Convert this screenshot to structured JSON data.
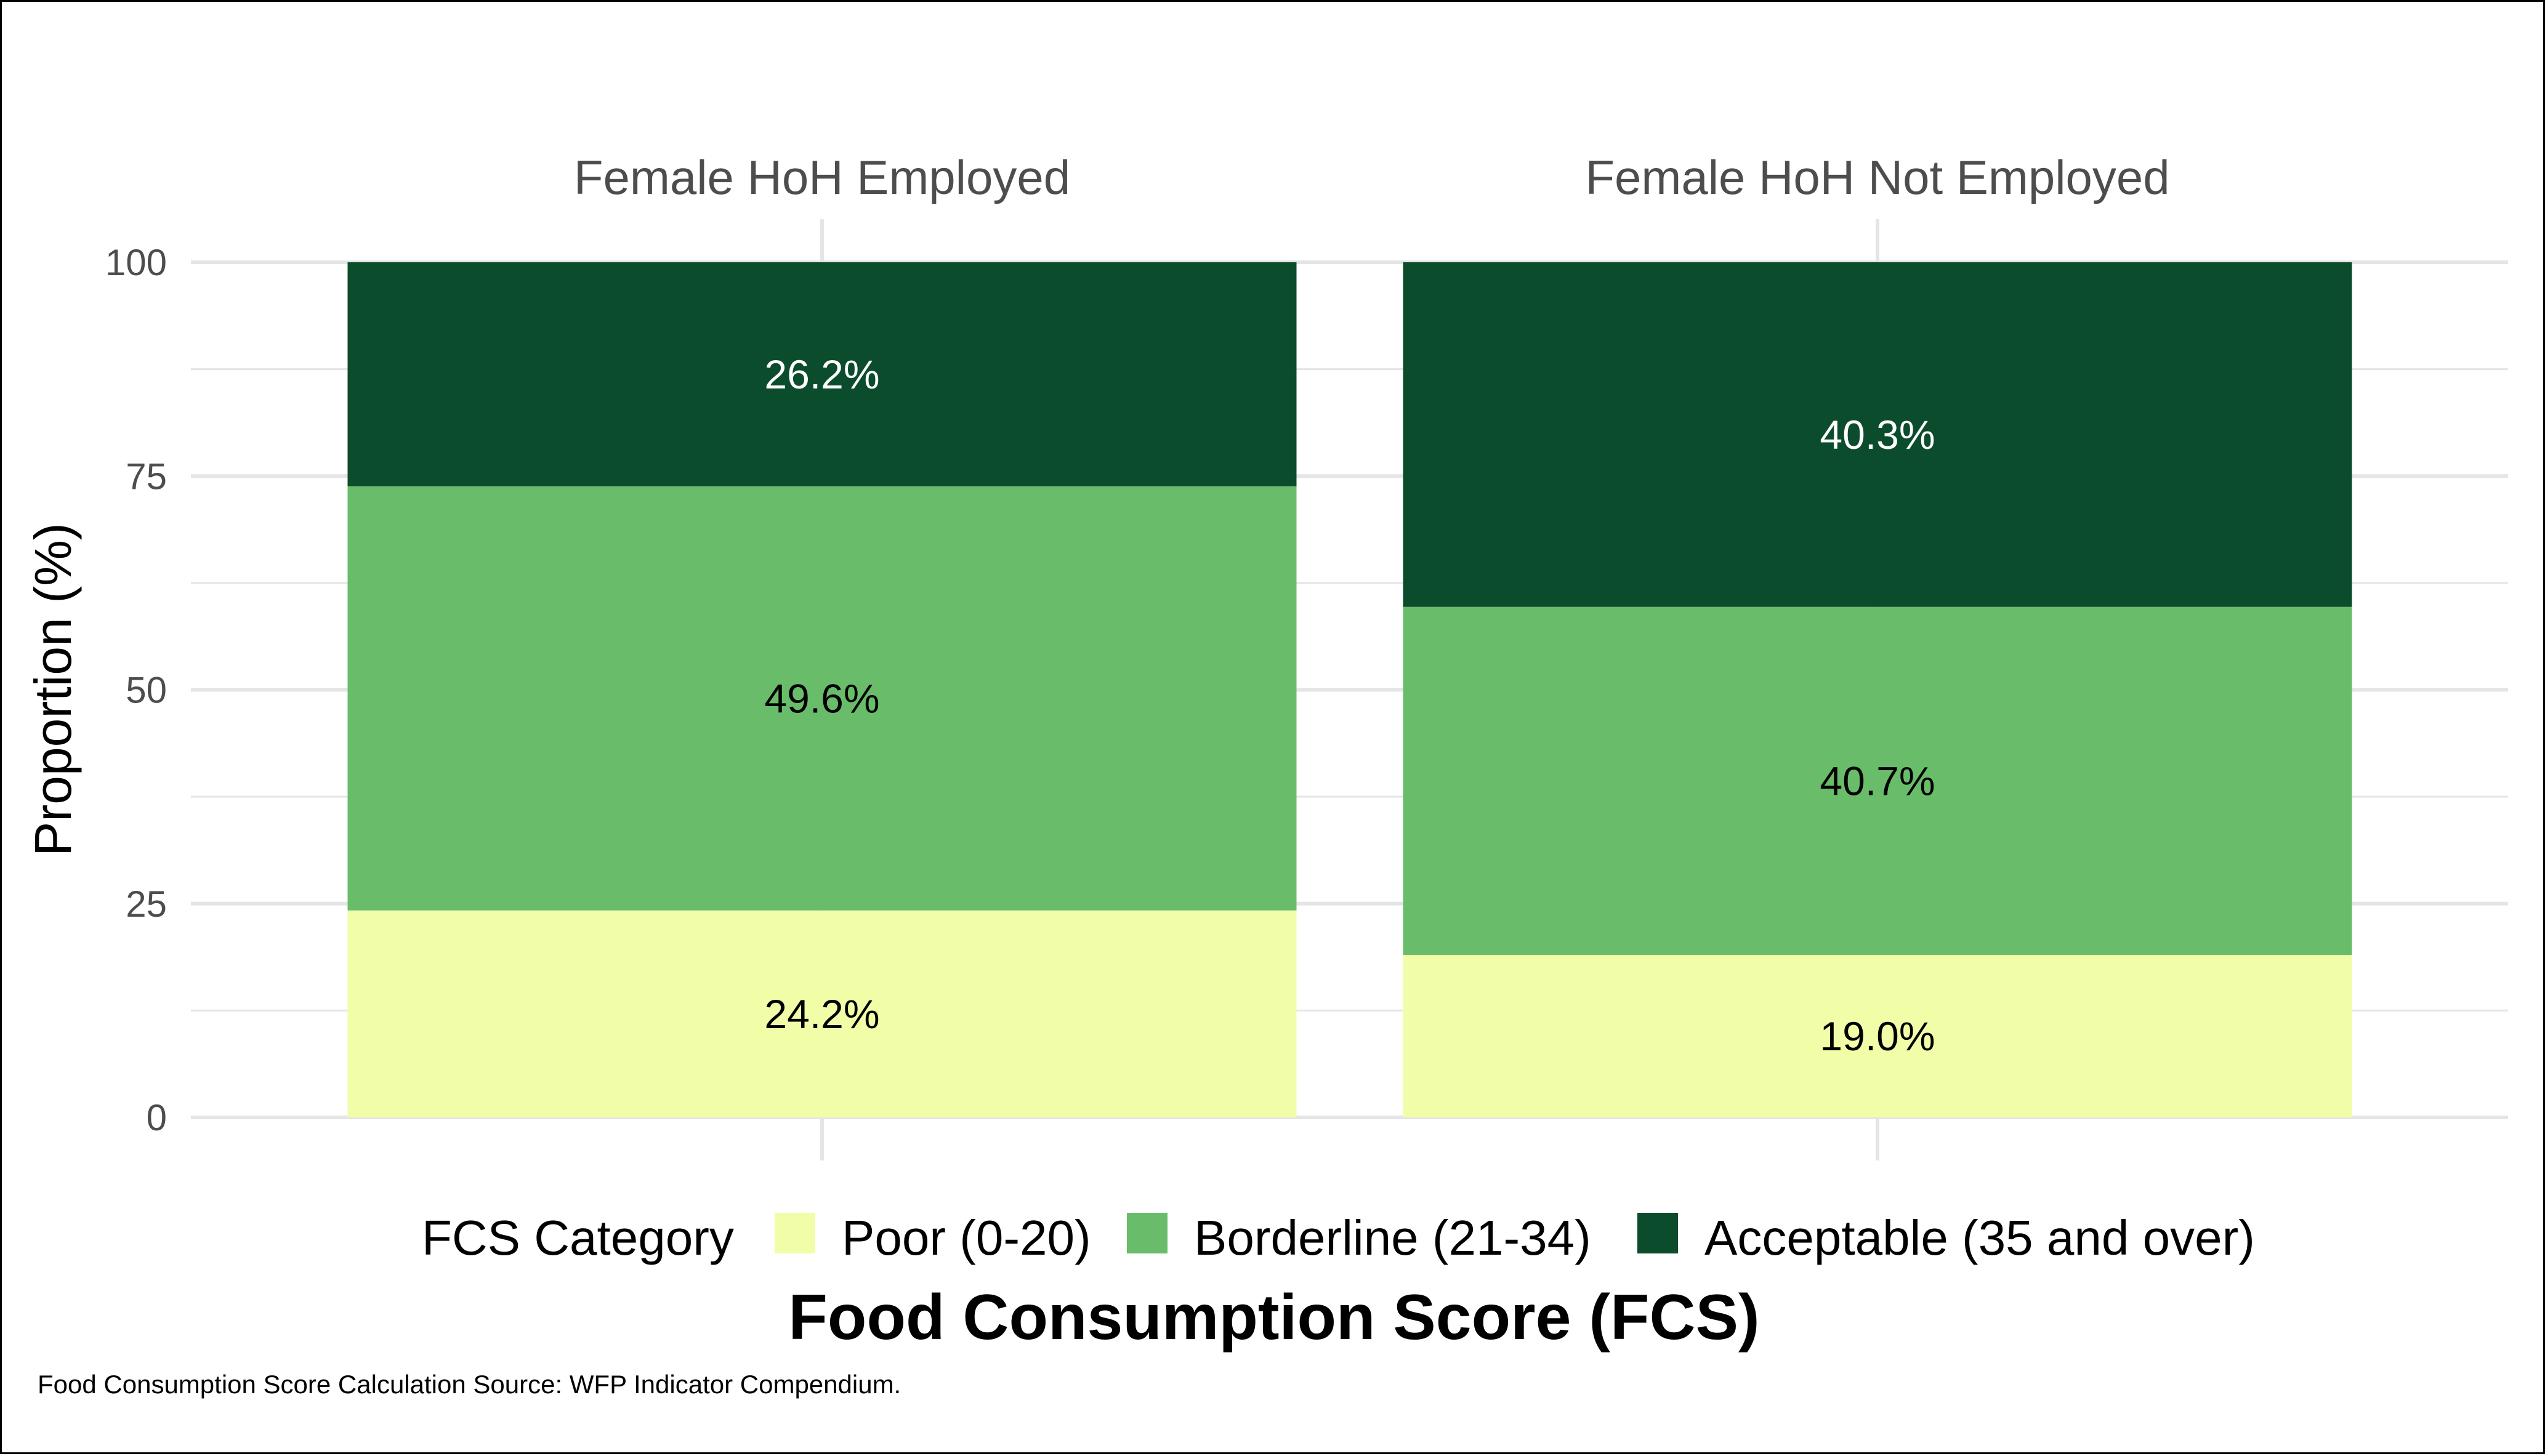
{
  "chart_data": {
    "type": "bar",
    "stacked": true,
    "facets": [
      "Female HoH Employed",
      "Female HoH Not Employed"
    ],
    "series": [
      {
        "name": "Poor (0-20)",
        "color": "#f2fda8",
        "label_color": "#000000",
        "values": [
          24.2,
          19.0
        ],
        "labels": [
          "24.2%",
          "19.0%"
        ]
      },
      {
        "name": "Borderline (21-34)",
        "color": "#69bd6a",
        "label_color": "#000000",
        "values": [
          49.6,
          40.7
        ],
        "labels": [
          "49.6%",
          "40.7%"
        ]
      },
      {
        "name": "Acceptable (35 and over)",
        "color": "#0b4c2c",
        "label_color": "#ffffff",
        "values": [
          26.2,
          40.3
        ],
        "labels": [
          "26.2%",
          "40.3%"
        ]
      }
    ],
    "ylabel": "Proportion (%)",
    "xlabel": "Food Consumption Score (FCS)",
    "ylim": [
      0,
      100
    ],
    "yticks": [
      0,
      25,
      50,
      75,
      100
    ],
    "grid": true,
    "legend": {
      "title": "FCS Category",
      "position": "bottom"
    },
    "caption": "Food Consumption Score Calculation Source: WFP Indicator Compendium."
  },
  "colors": {
    "grid": "#e5e5e5",
    "tick_text": "#4d4d4d",
    "border": "#000000"
  }
}
